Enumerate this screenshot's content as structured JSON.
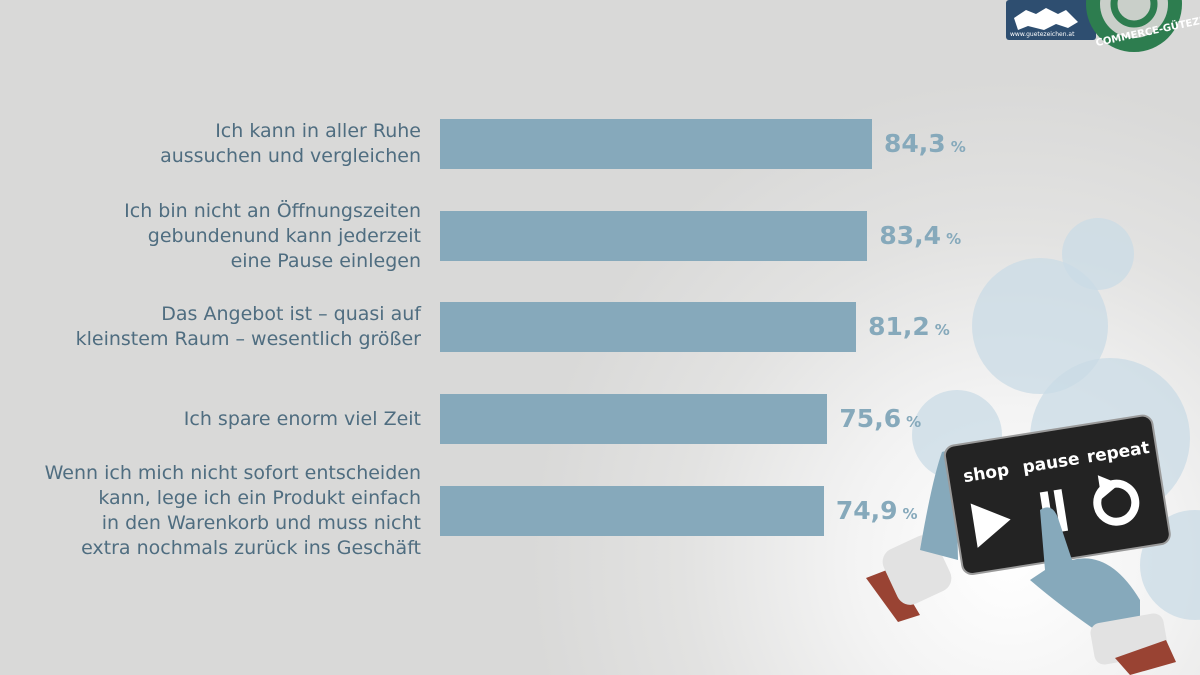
{
  "chart_data": {
    "type": "bar",
    "orientation": "horizontal",
    "categories": [
      "Ich kann in aller Ruhe\naussuchen und vergleichen",
      "Ich bin nicht an Öffnungszeiten\ngebundenund kann jederzeit\neine Pause einlegen",
      "Das Angebot ist – quasi auf\nkleinstem Raum – wesentlich größer",
      "Ich spare enorm viel Zeit",
      "Wenn ich mich nicht sofort entscheiden\nkann, lege ich ein Produkt einfach\nin den Warenkorb und muss nicht\nextra nochmals zurück ins Geschäft"
    ],
    "values": [
      84.3,
      83.4,
      81.2,
      75.6,
      74.9
    ],
    "value_labels": [
      "84,3",
      "83,4",
      "81,2",
      "75,6",
      "74,9"
    ],
    "unit": "%",
    "xlim": [
      0,
      100
    ],
    "grid": false,
    "bar_color": "#86a9bb",
    "label_color": "#4f6d80"
  },
  "illustration": {
    "tablet_labels": {
      "shop": "shop",
      "pause": "pause",
      "repeat": "repeat"
    }
  },
  "logo": {
    "url_text": "www.guetezeichen.at",
    "ring_text": "COMMERCE-GÜTEZEICH"
  }
}
